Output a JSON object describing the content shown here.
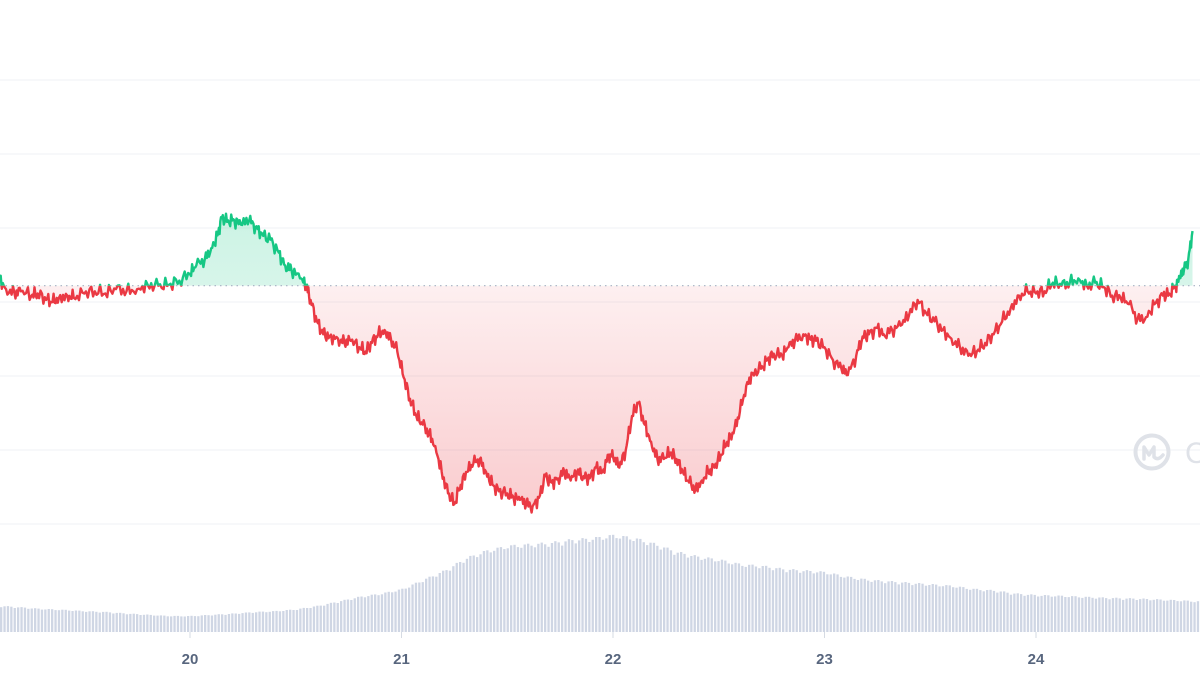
{
  "chart_data": {
    "type": "line",
    "title": "",
    "xlabel": "",
    "ylabel": "",
    "x_ticks": [
      "20",
      "21",
      "22",
      "23",
      "24"
    ],
    "xlim": [
      19.1,
      24.75
    ],
    "ylim": [
      0,
      100
    ],
    "grid": true,
    "legend": "none",
    "colors": {
      "up": "#16c784",
      "down": "#ea3943",
      "volume": "#cfd6e4",
      "grid": "#eff2f5",
      "baseline": "#a6b0c3"
    },
    "baseline": 60.3,
    "series": [
      {
        "points": [
          [
            19.1,
            62
          ],
          [
            19.13,
            59.5
          ],
          [
            19.17,
            58.5
          ],
          [
            19.2,
            59
          ],
          [
            19.25,
            58
          ],
          [
            19.28,
            58.5
          ],
          [
            19.32,
            57
          ],
          [
            19.35,
            56.5
          ],
          [
            19.38,
            57.5
          ],
          [
            19.42,
            58
          ],
          [
            19.45,
            57.5
          ],
          [
            19.5,
            58.5
          ],
          [
            19.55,
            59
          ],
          [
            19.6,
            58.5
          ],
          [
            19.65,
            59.5
          ],
          [
            19.7,
            59
          ],
          [
            19.75,
            59.5
          ],
          [
            19.8,
            60.5
          ],
          [
            19.85,
            60.3
          ],
          [
            19.9,
            60.5
          ],
          [
            19.95,
            61.5
          ],
          [
            20.0,
            63
          ],
          [
            20.03,
            65
          ],
          [
            20.07,
            66.5
          ],
          [
            20.1,
            69
          ],
          [
            20.13,
            72
          ],
          [
            20.15,
            76
          ],
          [
            20.18,
            75.5
          ],
          [
            20.21,
            75.5
          ],
          [
            20.24,
            74.5
          ],
          [
            20.28,
            75.5
          ],
          [
            20.31,
            74
          ],
          [
            20.34,
            72.5
          ],
          [
            20.38,
            71
          ],
          [
            20.42,
            68
          ],
          [
            20.45,
            65
          ],
          [
            20.48,
            64
          ],
          [
            20.52,
            62
          ],
          [
            20.55,
            60.3
          ],
          [
            20.57,
            57
          ],
          [
            20.6,
            52
          ],
          [
            20.63,
            49
          ],
          [
            20.66,
            48.5
          ],
          [
            20.7,
            48
          ],
          [
            20.73,
            47
          ],
          [
            20.76,
            47.5
          ],
          [
            20.8,
            46
          ],
          [
            20.83,
            45
          ],
          [
            20.86,
            47
          ],
          [
            20.89,
            49
          ],
          [
            20.92,
            50
          ],
          [
            20.95,
            48
          ],
          [
            20.98,
            45
          ],
          [
            21.01,
            39
          ],
          [
            21.04,
            34
          ],
          [
            21.07,
            30
          ],
          [
            21.1,
            28
          ],
          [
            21.13,
            26
          ],
          [
            21.16,
            23
          ],
          [
            21.19,
            17
          ],
          [
            21.22,
            12
          ],
          [
            21.25,
            9.5
          ],
          [
            21.28,
            14
          ],
          [
            21.31,
            17
          ],
          [
            21.34,
            19
          ],
          [
            21.37,
            20
          ],
          [
            21.4,
            17
          ],
          [
            21.43,
            14
          ],
          [
            21.46,
            12.5
          ],
          [
            21.5,
            12
          ],
          [
            21.53,
            11
          ],
          [
            21.56,
            10.5
          ],
          [
            21.59,
            9.5
          ],
          [
            21.62,
            9
          ],
          [
            21.65,
            11
          ],
          [
            21.68,
            16
          ],
          [
            21.71,
            14.5
          ],
          [
            21.74,
            15.5
          ],
          [
            21.77,
            17
          ],
          [
            21.8,
            15
          ],
          [
            21.83,
            17
          ],
          [
            21.86,
            16
          ],
          [
            21.89,
            15.5
          ],
          [
            21.92,
            18
          ],
          [
            21.95,
            17
          ],
          [
            21.98,
            21
          ],
          [
            22.0,
            20.5
          ],
          [
            22.03,
            18
          ],
          [
            22.06,
            22
          ],
          [
            22.09,
            30
          ],
          [
            22.12,
            33
          ],
          [
            22.15,
            28
          ],
          [
            22.18,
            24
          ],
          [
            22.21,
            20
          ],
          [
            22.24,
            20
          ],
          [
            22.27,
            21.5
          ],
          [
            22.3,
            20
          ],
          [
            22.33,
            17
          ],
          [
            22.36,
            14.5
          ],
          [
            22.39,
            13
          ],
          [
            22.42,
            15
          ],
          [
            22.45,
            17
          ],
          [
            22.48,
            18
          ],
          [
            22.51,
            21
          ],
          [
            22.54,
            24
          ],
          [
            22.57,
            26
          ],
          [
            22.6,
            31
          ],
          [
            22.63,
            37
          ],
          [
            22.66,
            40
          ],
          [
            22.7,
            41
          ],
          [
            22.73,
            43
          ],
          [
            22.76,
            44.5
          ],
          [
            22.8,
            44
          ],
          [
            22.83,
            46
          ],
          [
            22.86,
            47.5
          ],
          [
            22.9,
            49
          ],
          [
            22.93,
            48
          ],
          [
            22.96,
            47.5
          ],
          [
            23.0,
            46
          ],
          [
            23.04,
            43
          ],
          [
            23.08,
            41
          ],
          [
            23.11,
            39.5
          ],
          [
            23.15,
            44
          ],
          [
            23.18,
            48.5
          ],
          [
            23.21,
            49
          ],
          [
            23.25,
            50.5
          ],
          [
            23.28,
            49
          ],
          [
            23.32,
            50
          ],
          [
            23.36,
            51
          ],
          [
            23.4,
            53.5
          ],
          [
            23.44,
            57
          ],
          [
            23.48,
            54
          ],
          [
            23.52,
            52
          ],
          [
            23.56,
            50
          ],
          [
            23.6,
            48
          ],
          [
            23.64,
            46
          ],
          [
            23.68,
            44
          ],
          [
            23.72,
            45
          ],
          [
            23.76,
            47
          ],
          [
            23.8,
            49
          ],
          [
            23.84,
            52
          ],
          [
            23.88,
            55
          ],
          [
            23.92,
            58
          ],
          [
            23.96,
            59
          ],
          [
            24.0,
            58.5
          ],
          [
            24.04,
            59
          ],
          [
            24.08,
            61
          ],
          [
            24.12,
            60.3
          ],
          [
            24.16,
            61
          ],
          [
            24.2,
            62
          ],
          [
            24.24,
            60.3
          ],
          [
            24.28,
            61
          ],
          [
            24.32,
            60
          ],
          [
            24.36,
            58
          ],
          [
            24.4,
            57.5
          ],
          [
            24.44,
            56
          ],
          [
            24.48,
            52.5
          ],
          [
            24.52,
            53
          ],
          [
            24.56,
            56
          ],
          [
            24.6,
            58
          ],
          [
            24.63,
            58.5
          ],
          [
            24.66,
            60.3
          ],
          [
            24.68,
            62
          ],
          [
            24.7,
            64
          ],
          [
            24.72,
            66.5
          ],
          [
            24.74,
            73
          ]
        ]
      },
      {
        "type": "bar",
        "points": [
          [
            19.1,
            8.5
          ],
          [
            19.2,
            8
          ],
          [
            19.3,
            7.5
          ],
          [
            19.4,
            7.2
          ],
          [
            19.5,
            6.8
          ],
          [
            19.6,
            6.5
          ],
          [
            19.7,
            6
          ],
          [
            19.8,
            5.6
          ],
          [
            19.9,
            5.2
          ],
          [
            20.0,
            5.2
          ],
          [
            20.1,
            5.6
          ],
          [
            20.2,
            6
          ],
          [
            20.3,
            6.5
          ],
          [
            20.4,
            6.8
          ],
          [
            20.5,
            7.4
          ],
          [
            20.6,
            8.5
          ],
          [
            20.7,
            10
          ],
          [
            20.8,
            11.5
          ],
          [
            20.9,
            12.5
          ],
          [
            21.0,
            14
          ],
          [
            21.1,
            17
          ],
          [
            21.2,
            20
          ],
          [
            21.3,
            24
          ],
          [
            21.4,
            26.5
          ],
          [
            21.5,
            28
          ],
          [
            21.6,
            28.5
          ],
          [
            21.7,
            29
          ],
          [
            21.8,
            30
          ],
          [
            21.9,
            30.5
          ],
          [
            22.0,
            31.5
          ],
          [
            22.1,
            30.5
          ],
          [
            22.2,
            28.5
          ],
          [
            22.3,
            26
          ],
          [
            22.4,
            24.5
          ],
          [
            22.5,
            23.5
          ],
          [
            22.6,
            22
          ],
          [
            22.7,
            21.5
          ],
          [
            22.8,
            20.5
          ],
          [
            22.9,
            20
          ],
          [
            23.0,
            19.5
          ],
          [
            23.1,
            18
          ],
          [
            23.2,
            17
          ],
          [
            23.3,
            16.5
          ],
          [
            23.4,
            16
          ],
          [
            23.5,
            15.5
          ],
          [
            23.6,
            15
          ],
          [
            23.7,
            14
          ],
          [
            23.8,
            13.5
          ],
          [
            23.9,
            12.5
          ],
          [
            24.0,
            12
          ],
          [
            24.1,
            11.8
          ],
          [
            24.2,
            11.5
          ],
          [
            24.3,
            11.2
          ],
          [
            24.4,
            11
          ],
          [
            24.5,
            10.8
          ],
          [
            24.6,
            10.5
          ],
          [
            24.7,
            10.2
          ],
          [
            24.75,
            10
          ]
        ]
      }
    ],
    "watermark": {
      "icon": "coinmarketcap-logo-icon",
      "text": "C"
    }
  }
}
